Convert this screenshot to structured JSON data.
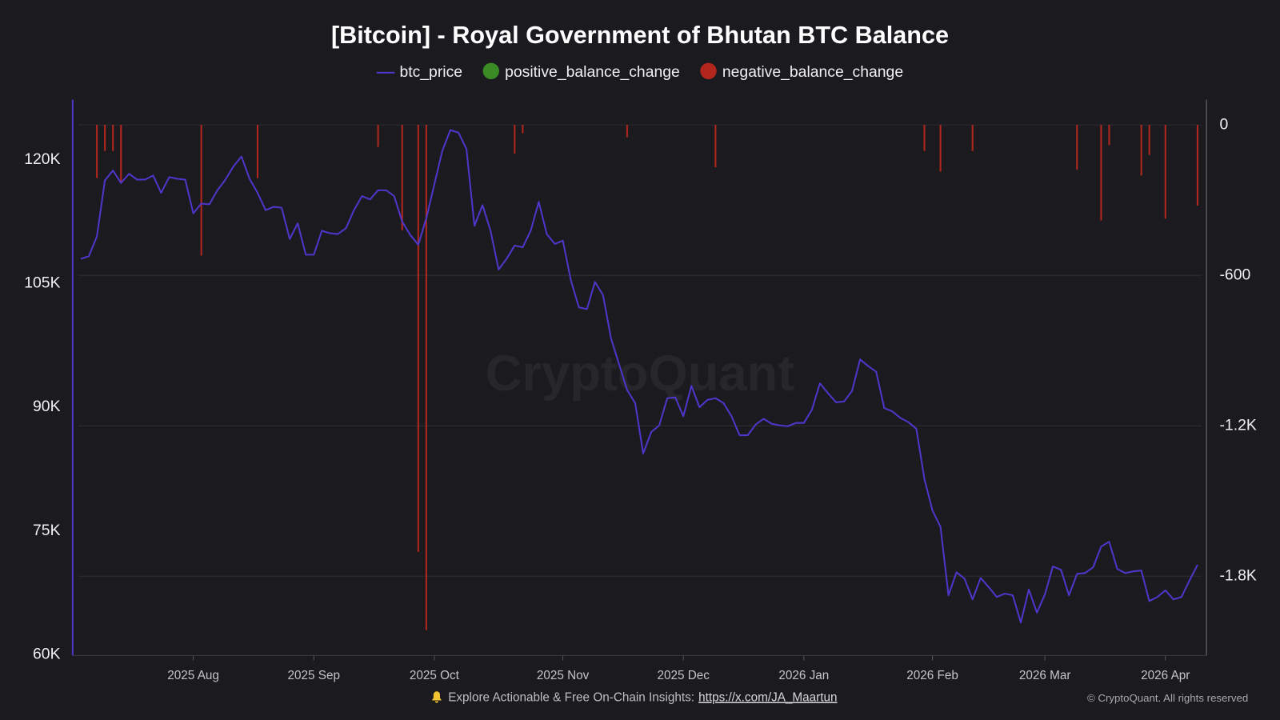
{
  "chart_data": {
    "type": "line",
    "title": "[Bitcoin] - Royal Government of Bhutan BTC Balance",
    "watermark": "CryptoQuant",
    "categories": [
      null,
      null,
      null,
      null,
      null,
      null,
      null,
      null,
      null,
      null,
      null,
      null,
      null,
      null,
      "2025 Aug",
      null,
      null,
      null,
      null,
      null,
      null,
      null,
      null,
      null,
      null,
      null,
      null,
      null,
      null,
      "2025 Sep",
      null,
      null,
      null,
      null,
      null,
      null,
      null,
      null,
      null,
      null,
      null,
      null,
      null,
      null,
      "2025 Oct",
      null,
      null,
      null,
      null,
      null,
      null,
      null,
      null,
      null,
      null,
      null,
      null,
      null,
      null,
      null,
      "2025 Nov",
      null,
      null,
      null,
      null,
      null,
      null,
      null,
      null,
      null,
      null,
      null,
      null,
      null,
      null,
      "2025 Dec",
      null,
      null,
      null,
      null,
      null,
      null,
      null,
      null,
      null,
      null,
      null,
      null,
      null,
      null,
      "2026 Jan",
      null,
      null,
      null,
      null,
      null,
      null,
      null,
      null,
      null,
      null,
      null,
      null,
      null,
      null,
      null,
      "2026 Feb",
      null,
      null,
      null,
      null,
      null,
      null,
      null,
      null,
      null,
      null,
      null,
      null,
      null,
      "2026 Mar",
      null,
      null,
      null,
      null,
      null,
      null,
      null,
      null,
      null,
      null,
      null,
      null,
      null,
      null,
      "2026 Apr",
      null,
      null,
      null,
      null
    ],
    "series": [
      {
        "name": "btc_price",
        "type": "line",
        "color": "#4f35c9",
        "values": [
          108000,
          108300,
          110700,
          117500,
          118700,
          117200,
          118300,
          117600,
          117600,
          118100,
          116000,
          117900,
          117700,
          117600,
          113500,
          114700,
          114600,
          116300,
          117600,
          119200,
          120400,
          117700,
          116000,
          113900,
          114300,
          114200,
          110400,
          112300,
          108500,
          108500,
          111400,
          111100,
          111000,
          111700,
          113900,
          115600,
          115200,
          116300,
          116300,
          115600,
          112500,
          110900,
          109700,
          112900,
          117000,
          121100,
          123600,
          123300,
          121300,
          112000,
          114500,
          111400,
          106700,
          108000,
          109600,
          109400,
          111400,
          114900,
          111000,
          109800,
          110200,
          105400,
          102100,
          101900,
          105200,
          103600,
          98300,
          95200,
          92100,
          90500,
          84400,
          87000,
          87800,
          91100,
          91200,
          88900,
          92600,
          90000,
          90900,
          91100,
          90500,
          88900,
          86600,
          86600,
          87900,
          88600,
          88000,
          87800,
          87700,
          88100,
          88100,
          89700,
          92900,
          91700,
          90600,
          90700,
          92000,
          95800,
          95000,
          94300,
          89900,
          89500,
          88700,
          88200,
          87400,
          81300,
          77500,
          75500,
          67200,
          70000,
          69200,
          66700,
          69300,
          68200,
          67000,
          67400,
          67200,
          63900,
          67900,
          65100,
          67300,
          70700,
          70300,
          67200,
          69800,
          69900,
          70600,
          73100,
          73700,
          70400,
          69900,
          70100,
          70200,
          66500,
          67000,
          67800,
          66700,
          67000,
          69000,
          70900
        ]
      },
      {
        "name": "positive_balance_change",
        "type": "bar",
        "axis": "y2",
        "color": "#3a8a26",
        "values": [
          null,
          null,
          null,
          null,
          null,
          null,
          null,
          null,
          null,
          null,
          null,
          null,
          null,
          null,
          null,
          null,
          null,
          null,
          null,
          null,
          null,
          null,
          null,
          null,
          null,
          null,
          null,
          null,
          null,
          null,
          null,
          null,
          null,
          null,
          null,
          null,
          null,
          null,
          null,
          null,
          null,
          null,
          null,
          null,
          null,
          null,
          null,
          null,
          null,
          null,
          null,
          null,
          null,
          null,
          null,
          null,
          null,
          null,
          null,
          null,
          null,
          null,
          null,
          null,
          null,
          null,
          null,
          null,
          null,
          null,
          null,
          null,
          null,
          null,
          null,
          null,
          null,
          null,
          null,
          null,
          null,
          null,
          null,
          null,
          null,
          null,
          null,
          null,
          null,
          null,
          null,
          null,
          null,
          null,
          null,
          null,
          null,
          null,
          null,
          null,
          null,
          null,
          null,
          null,
          null,
          null,
          null,
          null,
          null,
          null,
          null,
          null,
          null,
          null,
          null,
          null,
          null,
          null,
          null,
          null,
          null,
          null,
          null,
          null,
          null,
          null,
          null,
          null,
          null,
          null,
          null,
          null,
          null,
          null,
          null,
          null,
          null,
          null,
          null,
          null
        ]
      },
      {
        "name": "negative_balance_change",
        "type": "bar",
        "axis": "y2",
        "color": "#b3261e",
        "values": [
          null,
          null,
          -212,
          -104,
          -104,
          -234,
          null,
          null,
          null,
          null,
          null,
          null,
          null,
          null,
          null,
          -521,
          null,
          null,
          null,
          null,
          null,
          null,
          -212,
          null,
          null,
          null,
          null,
          null,
          null,
          null,
          null,
          null,
          null,
          null,
          null,
          null,
          null,
          -88,
          null,
          null,
          -420,
          null,
          -1703,
          -2015,
          null,
          null,
          null,
          null,
          null,
          null,
          null,
          null,
          null,
          null,
          -114,
          -33,
          null,
          null,
          null,
          null,
          null,
          null,
          null,
          null,
          null,
          null,
          null,
          null,
          -49,
          null,
          null,
          null,
          null,
          null,
          null,
          null,
          null,
          null,
          null,
          -169,
          null,
          null,
          null,
          null,
          null,
          null,
          null,
          null,
          null,
          null,
          null,
          null,
          null,
          null,
          null,
          null,
          null,
          null,
          null,
          null,
          null,
          null,
          null,
          null,
          null,
          -104,
          null,
          -186,
          null,
          null,
          null,
          -104,
          null,
          null,
          null,
          null,
          null,
          null,
          null,
          null,
          null,
          null,
          null,
          null,
          -179,
          null,
          null,
          -381,
          -81,
          null,
          null,
          null,
          -202,
          -120,
          null,
          -374,
          null,
          null,
          null,
          -322
        ]
      }
    ],
    "ylim": [
      60000,
      127300
    ],
    "yticks": [
      {
        "value": 60000,
        "label": "60K"
      },
      {
        "value": 75000,
        "label": "75K"
      },
      {
        "value": 90000,
        "label": "90K"
      },
      {
        "value": 105000,
        "label": "105K"
      },
      {
        "value": 120000,
        "label": "120K"
      }
    ],
    "y2lim": [
      -2113,
      101
    ],
    "y2ticks": [
      0,
      -600,
      {
        "value": -1200,
        "label": "-1.2K"
      },
      {
        "value": -1800,
        "label": "-1.8K"
      }
    ],
    "grid": true,
    "legend": "top"
  },
  "footer": {
    "text": "Explore Actionable & Free On-Chain Insights:",
    "link": "https://x.com/JA_Maartun",
    "copyright": "© CryptoQuant. All rights reserved"
  }
}
